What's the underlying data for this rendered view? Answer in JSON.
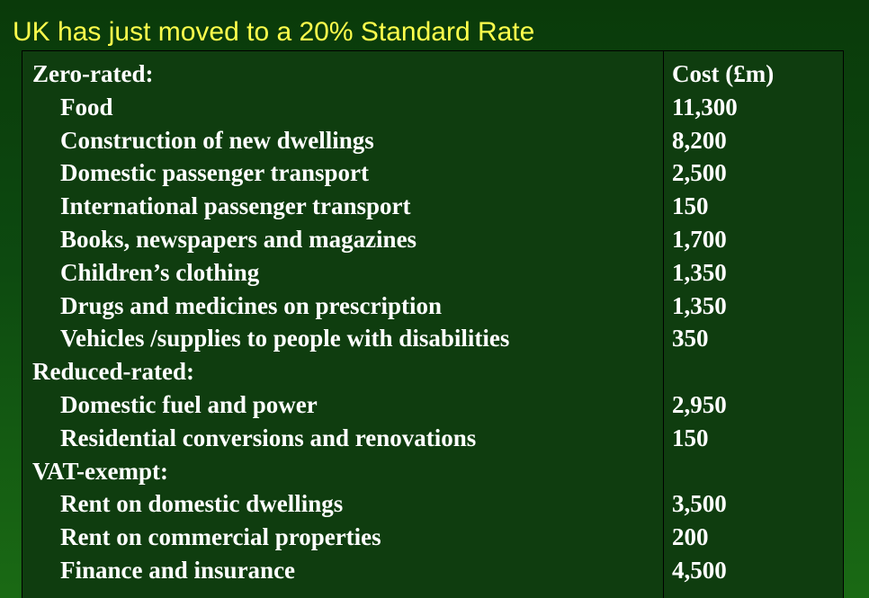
{
  "title": "UK has just moved to a 20% Standard Rate",
  "table": {
    "column_header": "Cost (£m)",
    "rows": [
      {
        "type": "section",
        "label": "Zero-rated:",
        "value": "Cost (£m)"
      },
      {
        "type": "item",
        "label": "Food",
        "value": "11,300"
      },
      {
        "type": "item",
        "label": "Construction of new dwellings",
        "value": "8,200"
      },
      {
        "type": "item",
        "label": "Domestic passenger transport",
        "value": "2,500"
      },
      {
        "type": "item",
        "label": "International passenger transport",
        "value": "150"
      },
      {
        "type": "item",
        "label": "Books, newspapers and magazines",
        "value": "1,700"
      },
      {
        "type": "item",
        "label": "Children’s clothing",
        "value": "1,350"
      },
      {
        "type": "item",
        "label": "Drugs and medicines on prescription",
        "value": "1,350"
      },
      {
        "type": "item",
        "label": "Vehicles /supplies to people with disabilities",
        "value": "350"
      },
      {
        "type": "section",
        "label": "Reduced-rated:",
        "value": ""
      },
      {
        "type": "item",
        "label": "Domestic fuel and power",
        "value": "2,950"
      },
      {
        "type": "item",
        "label": "Residential conversions and renovations",
        "value": "150"
      },
      {
        "type": "section",
        "label": "VAT-exempt:",
        "value": ""
      },
      {
        "type": "item",
        "label": "Rent on domestic dwellings",
        "value": "3,500"
      },
      {
        "type": "item",
        "label": "Rent on commercial properties",
        "value": "200"
      },
      {
        "type": "item",
        "label": "Finance and insurance",
        "value": "4,500"
      }
    ]
  }
}
